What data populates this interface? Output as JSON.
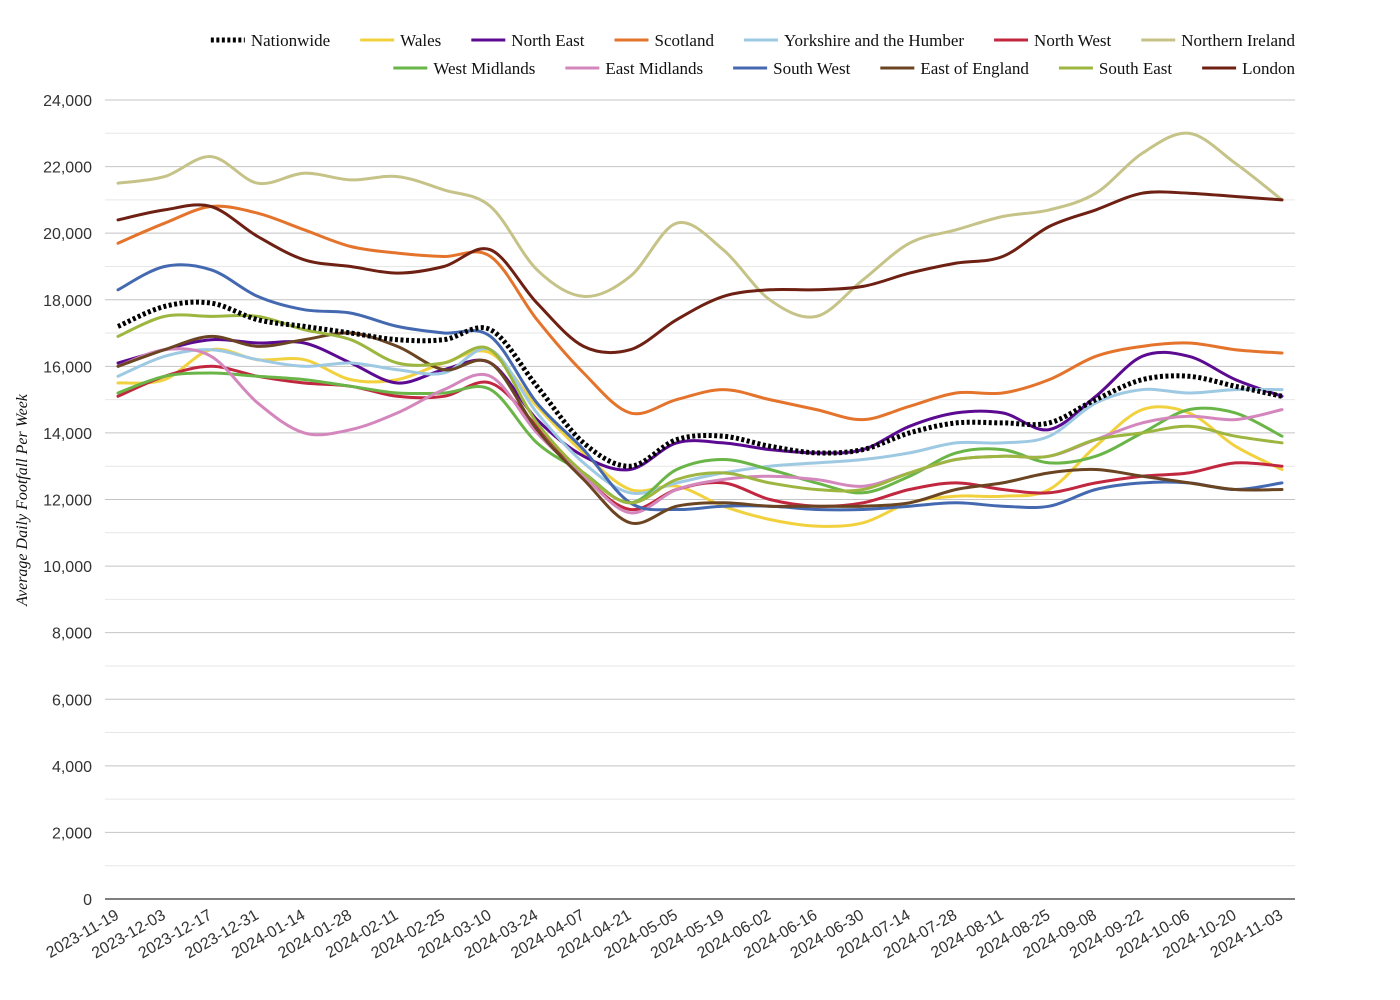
{
  "chart_data": {
    "type": "line",
    "title": "",
    "xlabel": "",
    "ylabel": "Average Daily Footfall Per Week",
    "ylim": [
      0,
      24000
    ],
    "yticks": [
      0,
      2000,
      4000,
      6000,
      8000,
      10000,
      12000,
      14000,
      16000,
      18000,
      20000,
      22000,
      24000
    ],
    "ytick_labels": [
      "0",
      "2,000",
      "4,000",
      "6,000",
      "8,000",
      "10,000",
      "12,000",
      "14,000",
      "16,000",
      "18,000",
      "20,000",
      "22,000",
      "24,000"
    ],
    "xtick_labels": [
      "2023-11-19",
      "2023-12-03",
      "2023-12-17",
      "2023-12-31",
      "2024-01-14",
      "2024-01-28",
      "2024-02-11",
      "2024-02-25",
      "2024-03-10",
      "2024-03-24",
      "2024-04-07",
      "2024-04-21",
      "2024-05-05",
      "2024-05-19",
      "2024-06-02",
      "2024-06-16",
      "2024-06-30",
      "2024-07-14",
      "2024-07-28",
      "2024-08-11",
      "2024-08-25",
      "2024-09-08",
      "2024-09-22",
      "2024-10-06",
      "2024-10-20",
      "2024-11-03"
    ],
    "x": [
      "2023-11-19",
      "2023-12-03",
      "2023-12-17",
      "2023-12-31",
      "2024-01-14",
      "2024-01-28",
      "2024-02-11",
      "2024-02-25",
      "2024-03-10",
      "2024-03-24",
      "2024-04-07",
      "2024-04-21",
      "2024-05-05",
      "2024-05-19",
      "2024-06-02",
      "2024-06-16",
      "2024-06-30",
      "2024-07-14",
      "2024-07-28",
      "2024-08-11",
      "2024-08-25",
      "2024-09-08",
      "2024-09-22",
      "2024-10-06",
      "2024-10-20",
      "2024-11-03"
    ],
    "grid": true,
    "legend_position": "top-right",
    "series": [
      {
        "name": "Nationwide",
        "color": "#000000",
        "dashed": true,
        "values": [
          17200,
          17800,
          17900,
          17400,
          17200,
          17000,
          16800,
          16800,
          17100,
          15400,
          13700,
          13000,
          13800,
          13900,
          13600,
          13400,
          13500,
          14000,
          14300,
          14300,
          14300,
          15000,
          15600,
          15700,
          15400,
          15100
        ]
      },
      {
        "name": "Wales",
        "color": "#f2d13f",
        "values": [
          15500,
          15600,
          16500,
          16200,
          16200,
          15600,
          15600,
          16100,
          16400,
          14800,
          13400,
          12300,
          12400,
          11800,
          11400,
          11200,
          11300,
          11900,
          12100,
          12100,
          12300,
          13600,
          14700,
          14600,
          13600,
          12900
        ]
      },
      {
        "name": "North East",
        "color": "#5b0a91",
        "values": [
          16100,
          16500,
          16800,
          16700,
          16700,
          16100,
          15500,
          15900,
          16100,
          14400,
          13300,
          12900,
          13700,
          13700,
          13500,
          13400,
          13500,
          14200,
          14600,
          14600,
          14100,
          15100,
          16300,
          16300,
          15600,
          15100
        ]
      },
      {
        "name": "Scotland",
        "color": "#e4732b",
        "values": [
          19700,
          20300,
          20800,
          20600,
          20100,
          19600,
          19400,
          19300,
          19300,
          17400,
          15800,
          14600,
          15000,
          15300,
          15000,
          14700,
          14400,
          14800,
          15200,
          15200,
          15600,
          16300,
          16600,
          16700,
          16500,
          16400
        ]
      },
      {
        "name": "Yorkshire and the Humber",
        "color": "#9ec9e2",
        "values": [
          15700,
          16300,
          16500,
          16200,
          16000,
          16100,
          15900,
          15800,
          16500,
          14600,
          13100,
          12200,
          12500,
          12800,
          13000,
          13100,
          13200,
          13400,
          13700,
          13700,
          13900,
          14900,
          15300,
          15200,
          15300,
          15300
        ]
      },
      {
        "name": "North West",
        "color": "#c1273f",
        "values": [
          15100,
          15700,
          16000,
          15700,
          15500,
          15400,
          15100,
          15100,
          15500,
          14200,
          12700,
          11700,
          12300,
          12500,
          12000,
          11800,
          11900,
          12300,
          12500,
          12300,
          12200,
          12500,
          12700,
          12800,
          13100,
          13000
        ]
      },
      {
        "name": "Northern Ireland",
        "color": "#c6c388",
        "values": [
          21500,
          21700,
          22300,
          21500,
          21800,
          21600,
          21700,
          21300,
          20800,
          18900,
          18100,
          18700,
          20300,
          19500,
          18000,
          17500,
          18600,
          19700,
          20100,
          20500,
          20700,
          21200,
          22400,
          23000,
          22100,
          21000
        ]
      },
      {
        "name": "West Midlands",
        "color": "#6ab547",
        "values": [
          15200,
          15700,
          15800,
          15700,
          15600,
          15400,
          15200,
          15200,
          15300,
          13700,
          12800,
          11900,
          12900,
          13200,
          12900,
          12500,
          12200,
          12700,
          13400,
          13500,
          13100,
          13300,
          14000,
          14700,
          14600,
          13900
        ]
      },
      {
        "name": "East Midlands",
        "color": "#d387bd",
        "values": [
          16000,
          16500,
          16300,
          14900,
          14000,
          14100,
          14600,
          15300,
          15700,
          14000,
          12700,
          11600,
          12300,
          12600,
          12700,
          12600,
          12400,
          12800,
          13200,
          13300,
          13300,
          13800,
          14300,
          14500,
          14400,
          14700
        ]
      },
      {
        "name": "South West",
        "color": "#4469b0",
        "values": [
          18300,
          19000,
          18900,
          18100,
          17700,
          17600,
          17200,
          17000,
          16900,
          14900,
          13500,
          11900,
          11700,
          11800,
          11800,
          11700,
          11700,
          11800,
          11900,
          11800,
          11800,
          12300,
          12500,
          12500,
          12300,
          12500
        ]
      },
      {
        "name": "East of England",
        "color": "#6b4422",
        "values": [
          16000,
          16500,
          16900,
          16600,
          16800,
          17000,
          16600,
          15900,
          16100,
          14100,
          12600,
          11300,
          11800,
          11900,
          11800,
          11800,
          11800,
          11900,
          12300,
          12500,
          12800,
          12900,
          12700,
          12500,
          12300,
          12300
        ]
      },
      {
        "name": "South East",
        "color": "#9db63f",
        "values": [
          16900,
          17500,
          17500,
          17500,
          17100,
          16800,
          16100,
          16100,
          16500,
          14300,
          12800,
          11900,
          12600,
          12800,
          12500,
          12300,
          12300,
          12800,
          13200,
          13300,
          13300,
          13800,
          14000,
          14200,
          13900,
          13700
        ]
      },
      {
        "name": "London",
        "color": "#6e2013",
        "values": [
          20400,
          20700,
          20800,
          19900,
          19200,
          19000,
          18800,
          19000,
          19500,
          17900,
          16600,
          16500,
          17400,
          18100,
          18300,
          18300,
          18400,
          18800,
          19100,
          19300,
          20200,
          20700,
          21200,
          21200,
          21100,
          21000
        ]
      }
    ]
  }
}
